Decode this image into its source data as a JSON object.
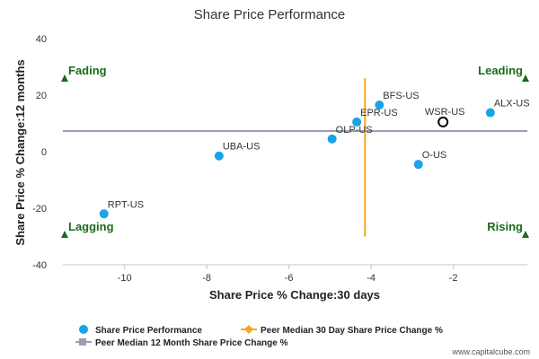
{
  "chart_data": {
    "type": "scatter",
    "title": "Share Price Performance",
    "xlabel": "Share Price % Change:30 days",
    "ylabel": "Share Price % Change:12 months",
    "xlim": [
      -11.5,
      -0.2
    ],
    "ylim": [
      -40,
      40
    ],
    "x_ticks": [
      -10,
      -8,
      -6,
      -4,
      -2
    ],
    "y_ticks": [
      40,
      20,
      0,
      -20,
      -40
    ],
    "grid": false,
    "points": [
      {
        "label": "RPT-US",
        "x": -10.5,
        "y": -22
      },
      {
        "label": "UBA-US",
        "x": -7.7,
        "y": -1.5
      },
      {
        "label": "OLP-US",
        "x": -4.95,
        "y": 4.5
      },
      {
        "label": "EPR-US",
        "x": -4.35,
        "y": 10.5
      },
      {
        "label": "BFS-US",
        "x": -3.8,
        "y": 16.5
      },
      {
        "label": "O-US",
        "x": -2.85,
        "y": -4.5
      },
      {
        "label": "ALX-US",
        "x": -1.1,
        "y": 13.8
      }
    ],
    "highlight_point": {
      "label": "WSR-US",
      "x": -2.25,
      "y": 10.5
    },
    "peer_median_30d": -4.15,
    "peer_median_30d_yrange": [
      -30,
      26
    ],
    "peer_median_12m": 7.3,
    "quadrants": [
      {
        "label": "Fading",
        "corner": "top-left"
      },
      {
        "label": "Leading",
        "corner": "top-right"
      },
      {
        "label": "Lagging",
        "corner": "bottom-left"
      },
      {
        "label": "Rising",
        "corner": "bottom-right"
      }
    ],
    "legend": [
      {
        "label": "Share Price Performance"
      },
      {
        "label": "Peer Median 30 Day Share Price Change %"
      },
      {
        "label": "Peer Median 12 Month Share Price Change %"
      }
    ],
    "legend_position": "bottom",
    "colors": {
      "points": "#1aa3e8",
      "median_30d": "#f5a623",
      "median_12m": "#9a9fb0",
      "highlight": "#000000",
      "quadrant": "#1a6b1a"
    }
  },
  "credit": "www.capitalcube.com"
}
